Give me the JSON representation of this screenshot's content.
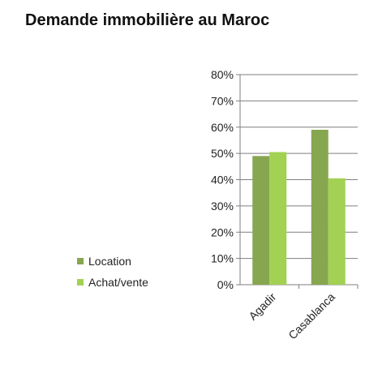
{
  "title": "Demande immobilière au Maroc",
  "chart_data": {
    "type": "bar",
    "title": "Demande immobilière au Maroc",
    "categories": [
      "Agadir",
      "Casablanca"
    ],
    "series": [
      {
        "name": "Location",
        "values": [
          49,
          59
        ],
        "color": "#86a650"
      },
      {
        "name": "Achat/vente",
        "values": [
          50.5,
          40.5
        ],
        "color": "#a2d153"
      }
    ],
    "ylim": [
      0,
      80
    ],
    "yticks": [
      "0%",
      "10%",
      "20%",
      "30%",
      "40%",
      "50%",
      "60%",
      "70%",
      "80%"
    ],
    "grid": true,
    "legend_position": "left"
  }
}
